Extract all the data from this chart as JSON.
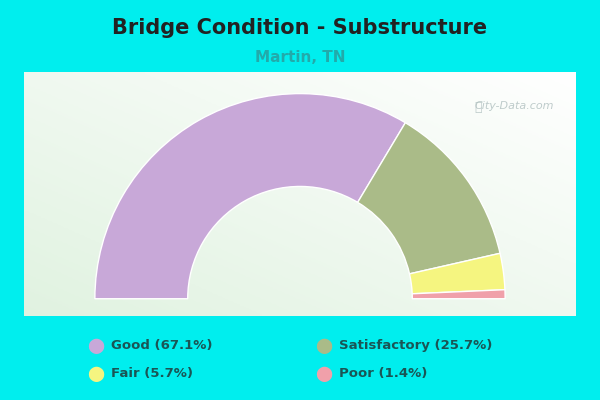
{
  "title": "Bridge Condition - Substructure",
  "subtitle": "Martin, TN",
  "title_fontsize": 15,
  "subtitle_fontsize": 11,
  "title_color": "#222222",
  "subtitle_color": "#22aaaa",
  "background_color": "#00eeee",
  "watermark": "© City-Data.com",
  "segments": [
    {
      "label": "Good (67.1%)",
      "value": 67.1,
      "color": "#c8a8d8"
    },
    {
      "label": "Satisfactory (25.7%)",
      "value": 25.7,
      "color": "#aabb88"
    },
    {
      "label": "Fair (5.7%)",
      "value": 5.7,
      "color": "#f5f580"
    },
    {
      "label": "Poor (1.4%)",
      "value": 1.4,
      "color": "#f0a0aa"
    }
  ],
  "legend_colors": [
    "#c8a8d8",
    "#aabb88",
    "#f5f580",
    "#f0a0aa"
  ],
  "legend_labels": [
    "Good (67.1%)",
    "Satisfactory (25.7%)",
    "Fair (5.7%)",
    "Poor (1.4%)"
  ],
  "legend_text_color": "#1a5555",
  "legend_fontsize": 9.5
}
